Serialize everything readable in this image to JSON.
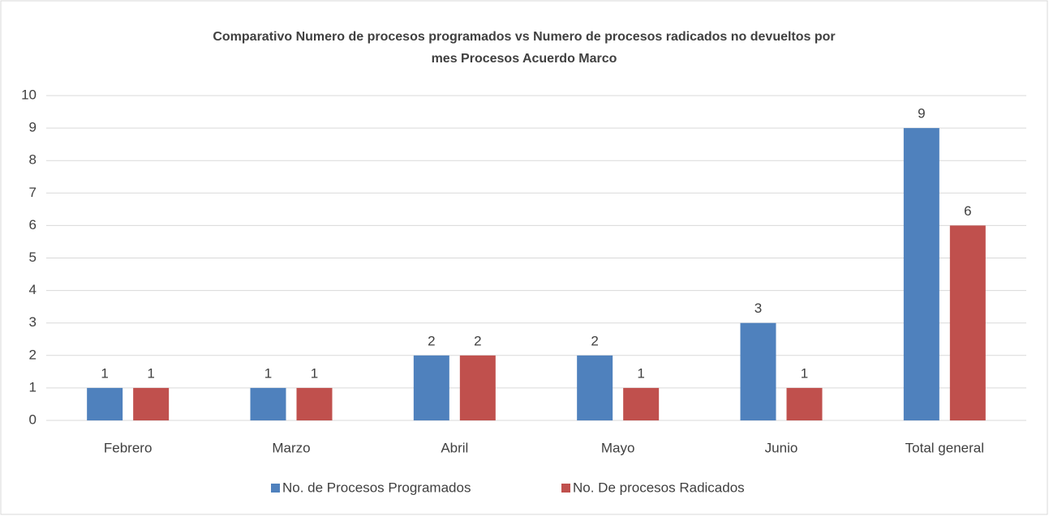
{
  "chart_data": {
    "type": "bar",
    "title": [
      "Comparativo Numero de procesos programados vs Numero de procesos radicados no devueltos por",
      "mes Procesos Acuerdo Marco"
    ],
    "categories": [
      "Febrero",
      "Marzo",
      "Abril",
      "Mayo",
      "Junio",
      "Total general"
    ],
    "series": [
      {
        "name": "No. de Procesos Programados",
        "color": "#4f81bd",
        "values": [
          1,
          1,
          2,
          2,
          3,
          9
        ]
      },
      {
        "name": "No. De procesos Radicados",
        "color": "#c0504d",
        "values": [
          1,
          1,
          2,
          1,
          1,
          6
        ]
      }
    ],
    "ylim": [
      0,
      10
    ],
    "yticks": [
      0,
      1,
      2,
      3,
      4,
      5,
      6,
      7,
      8,
      9,
      10
    ],
    "grid": true,
    "legend": "bottom"
  }
}
